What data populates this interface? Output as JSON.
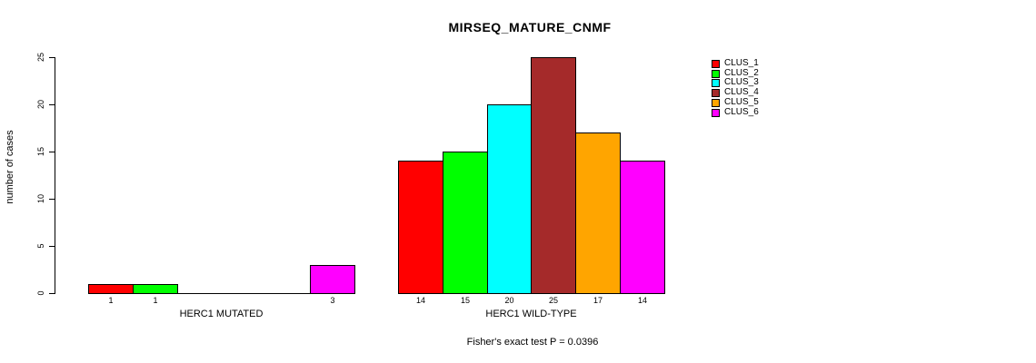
{
  "chart_data": {
    "type": "bar",
    "title": "MIRSEQ_MATURE_CNMF",
    "ylabel": "number of cases",
    "xlabel": "",
    "ylim": [
      0,
      25
    ],
    "yticks": [
      0,
      5,
      10,
      15,
      20,
      25
    ],
    "grid": false,
    "legend_position": "right",
    "series_labels": [
      "CLUS_1",
      "CLUS_2",
      "CLUS_3",
      "CLUS_4",
      "CLUS_5",
      "CLUS_6"
    ],
    "colors": [
      "#FF0000",
      "#00FF00",
      "#00FFFF",
      "#A52A2A",
      "#FFA500",
      "#FF00FF"
    ],
    "groups": [
      {
        "label": "HERC1 MUTATED",
        "values": [
          1,
          1,
          0,
          0,
          0,
          3
        ]
      },
      {
        "label": "HERC1 WILD-TYPE",
        "values": [
          14,
          15,
          20,
          25,
          17,
          14
        ]
      }
    ],
    "bar_value_labels_shown": [
      "1",
      "1",
      "3",
      "14",
      "15",
      "20",
      "25",
      "17",
      "14"
    ],
    "annotation": "Fisher's exact test P = 0.0396"
  }
}
